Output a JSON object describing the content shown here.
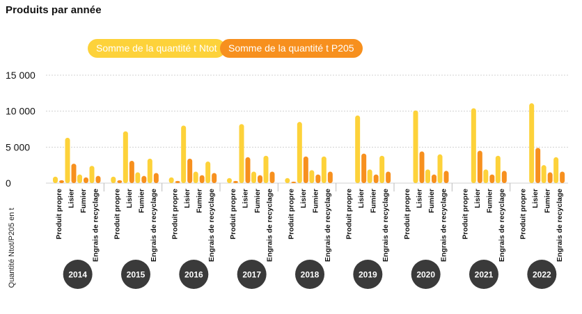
{
  "title": "Produits par année",
  "chart_data": {
    "type": "bar",
    "ylabel": "Quantité Ntot/P205 en t",
    "ylim": [
      0,
      15000
    ],
    "yticks": [
      0,
      5000,
      10000,
      15000
    ],
    "ytick_labels": [
      "0",
      "5 000",
      "10 000",
      "15 000"
    ],
    "grid": true,
    "categories": [
      "Produit propre",
      "Lisier",
      "Fumier",
      "Engrais de recyclage"
    ],
    "groups": [
      "2014",
      "2015",
      "2016",
      "2017",
      "2018",
      "2019",
      "2020",
      "2021",
      "2022"
    ],
    "series": [
      {
        "name": "Somme de la quantité t Ntot",
        "color": "#fdd23a",
        "values": [
          [
            900,
            6300,
            1200,
            2400
          ],
          [
            900,
            7200,
            1500,
            3400
          ],
          [
            800,
            8000,
            1600,
            3000
          ],
          [
            700,
            8200,
            1600,
            3800
          ],
          [
            700,
            8500,
            1800,
            3700
          ],
          [
            0,
            9400,
            1900,
            3800
          ],
          [
            0,
            10100,
            1900,
            4000
          ],
          [
            0,
            10400,
            1900,
            3800
          ],
          [
            0,
            11100,
            2500,
            3600
          ]
        ]
      },
      {
        "name": "Somme de la quantité t P205",
        "color": "#f7901e",
        "values": [
          [
            400,
            2700,
            800,
            1000
          ],
          [
            400,
            3100,
            1000,
            1400
          ],
          [
            300,
            3400,
            1100,
            1400
          ],
          [
            300,
            3600,
            1100,
            1600
          ],
          [
            200,
            3700,
            1200,
            1600
          ],
          [
            0,
            4100,
            1200,
            1600
          ],
          [
            0,
            4400,
            1200,
            1700
          ],
          [
            0,
            4500,
            1200,
            1700
          ],
          [
            0,
            4900,
            1500,
            1600
          ]
        ]
      }
    ]
  }
}
